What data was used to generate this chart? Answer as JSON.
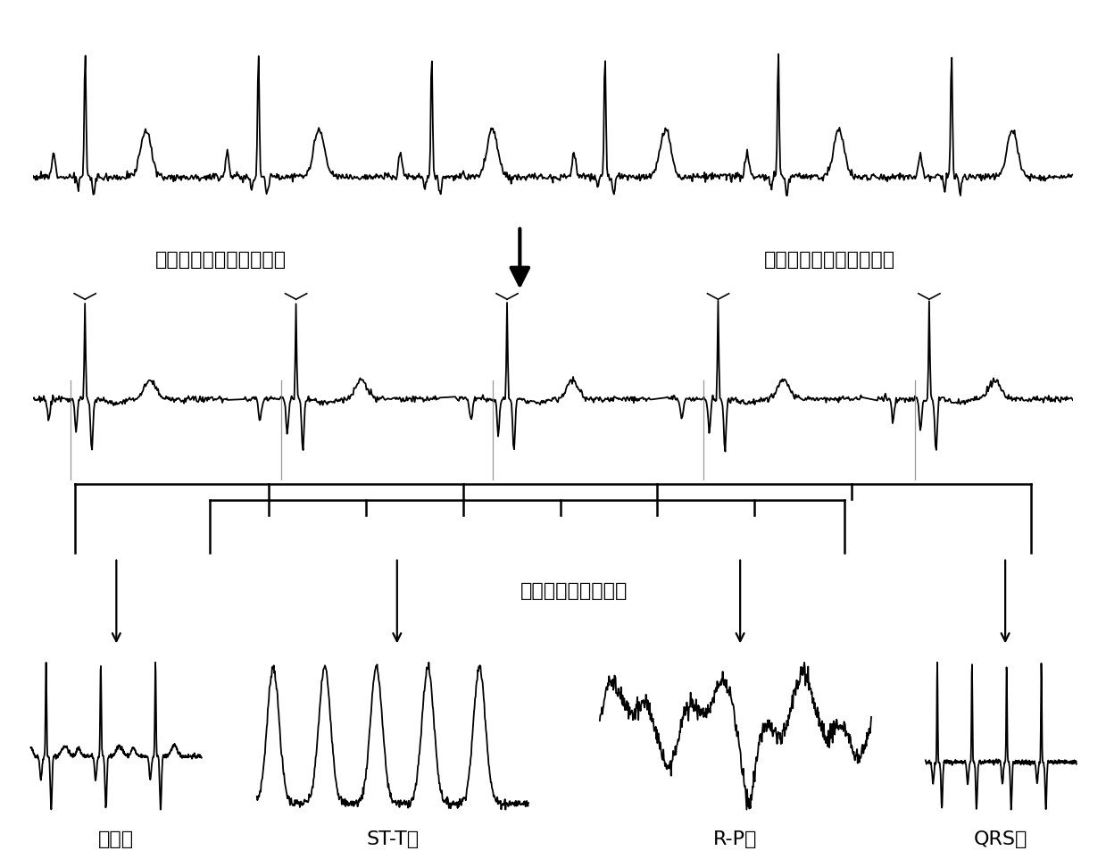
{
  "bg_color": "#ffffff",
  "text_color": "#000000",
  "label1": "自适应心电信号区域分割",
  "label2": "自适应心电信号区域分割",
  "label3": "子区域心电序列重组",
  "region_labels": [
    "首尾区",
    "ST-T区",
    "R-P区",
    "QRS区"
  ],
  "font_size": 16
}
